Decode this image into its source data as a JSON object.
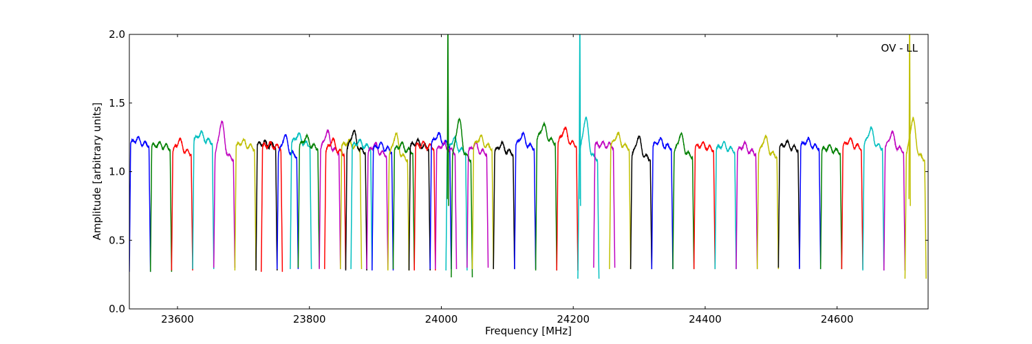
{
  "chart_data": {
    "type": "line",
    "title": "",
    "xlabel": "Frequency [MHz]",
    "ylabel": "Amplitude [arbitrary units]",
    "annotation": "OV - LL",
    "xlim": [
      23527,
      24738
    ],
    "ylim": [
      0.0,
      2.0
    ],
    "x_ticks": [
      23600,
      23800,
      24000,
      24200,
      24400,
      24600
    ],
    "x_tick_labels": [
      "23600",
      "23800",
      "24000",
      "24200",
      "24400",
      "24600"
    ],
    "y_ticks": [
      0.0,
      0.5,
      1.0,
      1.5,
      2.0
    ],
    "y_tick_labels": [
      "0.0",
      "0.5",
      "1.0",
      "1.5",
      "2.0"
    ],
    "grid": false,
    "legend": "none",
    "channel_width_mhz": 32,
    "colors": [
      "#0000ff",
      "#008000",
      "#ff0000",
      "#00bfbf",
      "#bf00bf",
      "#bfbf00",
      "#000000"
    ],
    "series": [
      {
        "start": 23527,
        "color": "#0000ff",
        "level": 1.2,
        "peak": 1.24,
        "min": 0.27
      },
      {
        "start": 23559,
        "color": "#008000",
        "level": 1.18,
        "peak": 1.2,
        "min": 0.27
      },
      {
        "start": 23591,
        "color": "#ff0000",
        "level": 1.14,
        "peak": 1.23,
        "min": 0.28
      },
      {
        "start": 23623,
        "color": "#00bfbf",
        "level": 1.22,
        "peak": 1.28,
        "min": 0.29
      },
      {
        "start": 23655,
        "color": "#bf00bf",
        "level": 1.1,
        "peak": 1.36,
        "min": 0.3
      },
      {
        "start": 23687,
        "color": "#bfbf00",
        "level": 1.18,
        "peak": 1.22,
        "min": 0.28
      },
      {
        "start": 23719,
        "color": "#000000",
        "level": 1.19,
        "peak": 1.21,
        "min": 0.28
      },
      {
        "start": 23727,
        "color": "#ff0000",
        "level": 1.18,
        "peak": 1.2,
        "min": 0.27
      },
      {
        "start": 23751,
        "color": "#0000ff",
        "level": 1.12,
        "peak": 1.26,
        "min": 0.29
      },
      {
        "start": 23771,
        "color": "#00bfbf",
        "level": 1.2,
        "peak": 1.27,
        "min": 0.29
      },
      {
        "start": 23783,
        "color": "#008000",
        "level": 1.18,
        "peak": 1.25,
        "min": 0.3
      },
      {
        "start": 23815,
        "color": "#bf00bf",
        "level": 1.15,
        "peak": 1.29,
        "min": 0.29
      },
      {
        "start": 23823,
        "color": "#ff0000",
        "level": 1.14,
        "peak": 1.23,
        "min": 0.29
      },
      {
        "start": 23847,
        "color": "#bfbf00",
        "level": 1.18,
        "peak": 1.22,
        "min": 0.29
      },
      {
        "start": 23855,
        "color": "#000000",
        "level": 1.15,
        "peak": 1.29,
        "min": 0.28
      },
      {
        "start": 23863,
        "color": "#00bfbf",
        "level": 1.18,
        "peak": 1.22,
        "min": 0.29
      },
      {
        "start": 23887,
        "color": "#bf00bf",
        "level": 1.13,
        "peak": 1.2,
        "min": 0.29
      },
      {
        "start": 23895,
        "color": "#0000ff",
        "level": 1.16,
        "peak": 1.2,
        "min": 0.28
      },
      {
        "start": 23919,
        "color": "#bfbf00",
        "level": 1.1,
        "peak": 1.27,
        "min": 0.28
      },
      {
        "start": 23927,
        "color": "#008000",
        "level": 1.15,
        "peak": 1.2,
        "min": 0.29
      },
      {
        "start": 23951,
        "color": "#000000",
        "level": 1.18,
        "peak": 1.22,
        "min": 0.28
      },
      {
        "start": 23959,
        "color": "#ff0000",
        "level": 1.18,
        "peak": 1.2,
        "min": 0.28
      },
      {
        "start": 23983,
        "color": "#0000ff",
        "level": 1.2,
        "peak": 1.27,
        "min": 0.29
      },
      {
        "start": 23991,
        "color": "#bf00bf",
        "level": 1.15,
        "peak": 1.2,
        "min": 0.29
      },
      {
        "start": 24007,
        "color": "#00bfbf",
        "level": 1.15,
        "peak": 1.24,
        "min": 0.28
      },
      {
        "start": 24015,
        "color": "#008000",
        "level": 1.1,
        "peak": 1.38,
        "min": 0.23,
        "spike": 24010
      },
      {
        "start": 24039,
        "color": "#bf00bf",
        "level": 1.14,
        "peak": 1.2,
        "min": 0.3
      },
      {
        "start": 24047,
        "color": "#bfbf00",
        "level": 1.18,
        "peak": 1.25,
        "min": 0.29
      },
      {
        "start": 24079,
        "color": "#000000",
        "level": 1.14,
        "peak": 1.2,
        "min": 0.29
      },
      {
        "start": 24111,
        "color": "#0000ff",
        "level": 1.18,
        "peak": 1.27,
        "min": 0.29
      },
      {
        "start": 24143,
        "color": "#008000",
        "level": 1.22,
        "peak": 1.34,
        "min": 0.28
      },
      {
        "start": 24175,
        "color": "#ff0000",
        "level": 1.2,
        "peak": 1.31,
        "min": 0.28
      },
      {
        "start": 24207,
        "color": "#00bfbf",
        "level": 1.1,
        "peak": 1.39,
        "min": 0.22,
        "spike": 24210
      },
      {
        "start": 24231,
        "color": "#bf00bf",
        "level": 1.19,
        "peak": 1.2,
        "min": 0.3
      },
      {
        "start": 24255,
        "color": "#bfbf00",
        "level": 1.18,
        "peak": 1.27,
        "min": 0.29
      },
      {
        "start": 24287,
        "color": "#000000",
        "level": 1.1,
        "peak": 1.25,
        "min": 0.29
      },
      {
        "start": 24319,
        "color": "#0000ff",
        "level": 1.18,
        "peak": 1.23,
        "min": 0.29
      },
      {
        "start": 24351,
        "color": "#008000",
        "level": 1.12,
        "peak": 1.27,
        "min": 0.29
      },
      {
        "start": 24383,
        "color": "#ff0000",
        "level": 1.17,
        "peak": 1.2,
        "min": 0.29
      },
      {
        "start": 24415,
        "color": "#00bfbf",
        "level": 1.16,
        "peak": 1.2,
        "min": 0.29
      },
      {
        "start": 24447,
        "color": "#bf00bf",
        "level": 1.14,
        "peak": 1.2,
        "min": 0.29
      },
      {
        "start": 24479,
        "color": "#bfbf00",
        "level": 1.12,
        "peak": 1.25,
        "min": 0.29
      },
      {
        "start": 24511,
        "color": "#000000",
        "level": 1.17,
        "peak": 1.21,
        "min": 0.3
      },
      {
        "start": 24543,
        "color": "#0000ff",
        "level": 1.18,
        "peak": 1.23,
        "min": 0.29
      },
      {
        "start": 24575,
        "color": "#008000",
        "level": 1.15,
        "peak": 1.18,
        "min": 0.29
      },
      {
        "start": 24607,
        "color": "#ff0000",
        "level": 1.18,
        "peak": 1.23,
        "min": 0.29
      },
      {
        "start": 24639,
        "color": "#00bfbf",
        "level": 1.18,
        "peak": 1.31,
        "min": 0.28
      },
      {
        "start": 24671,
        "color": "#bf00bf",
        "level": 1.16,
        "peak": 1.28,
        "min": 0.28
      },
      {
        "start": 24703,
        "color": "#bfbf00",
        "level": 1.1,
        "peak": 1.38,
        "min": 0.22,
        "spike": 24710
      }
    ]
  }
}
